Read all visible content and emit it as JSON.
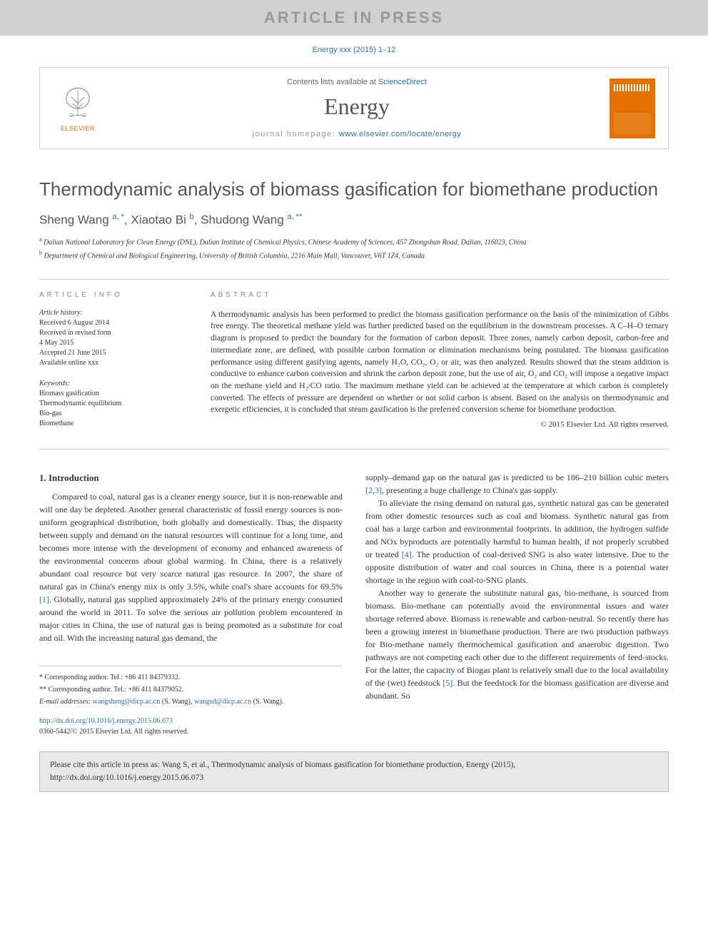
{
  "banner": "ARTICLE IN PRESS",
  "citation_top": "Energy xxx (2015) 1–12",
  "header": {
    "contents_prefix": "Contents lists available at ",
    "contents_link": "ScienceDirect",
    "journal": "Energy",
    "homepage_prefix": "journal homepage: ",
    "homepage_link": "www.elsevier.com/locate/energy",
    "publisher": "ELSEVIER"
  },
  "title": "Thermodynamic analysis of biomass gasification for biomethane production",
  "authors_html": "Sheng Wang <sup>a, *</sup>, Xiaotao Bi <sup>b</sup>, Shudong Wang <sup>a, **</sup>",
  "affiliations": [
    {
      "sup": "a",
      "text": "Dalian National Laboratory for Clean Energy (DNL), Dalian Institute of Chemical Physics, Chinese Academy of Sciences, 457 Zhongshan Road, Dalian, 116023, China"
    },
    {
      "sup": "b",
      "text": "Department of Chemical and Biological Engineering, University of British Columbia, 2216 Main Mall, Vancouver, V6T 1Z4, Canada"
    }
  ],
  "article_info_label": "ARTICLE INFO",
  "abstract_label": "ABSTRACT",
  "history_label": "Article history:",
  "history": [
    "Received 6 August 2014",
    "Received in revised form",
    "4 May 2015",
    "Accepted 21 June 2015",
    "Available online xxx"
  ],
  "keywords_label": "Keywords:",
  "keywords": [
    "Biomass gasification",
    "Thermodynamic equilibrium",
    "Bio-gas",
    "Biomethane"
  ],
  "abstract": "A thermodynamic analysis has been performed to predict the biomass gasification performance on the basis of the minimization of Gibbs free energy. The theoretical methane yield was further predicted based on the equilibrium in the downstream processes. A C–H–O ternary diagram is proposed to predict the boundary for the formation of carbon deposit. Three zones, namely carbon deposit, carbon-free and intermediate zone, are defined, with possible carbon formation or elimination mechanisms being postulated. The biomass gasification performance using different gasifying agents, namely H₂O, CO₂, O₂ or air, was then analyzed. Results showed that the steam addition is conductive to enhance carbon conversion and shrink the carbon deposit zone, but the use of air, O₂ and CO₂ will impose a negative impact on the methane yield and H₂/CO ratio. The maximum methane yield can be achieved at the temperature at which carbon is completely converted. The effects of pressure are dependent on whether or not solid carbon is absent. Based on the analysis on thermodynamic and exergetic efficiencies, it is concluded that steam gasification is the preferred conversion scheme for biomethane production.",
  "copyright": "© 2015 Elsevier Ltd. All rights reserved.",
  "section1_heading": "1. Introduction",
  "col1_p1": "Compared to coal, natural gas is a cleaner energy source, but it is non-renewable and will one day be depleted. Another general characteristic of fossil energy sources is non-uniform geographical distribution, both globally and domestically. Thus, the disparity between supply and demand on the natural resources will continue for a long time, and becomes more intense with the development of economy and enhanced awareness of the environmental concerns about global warming. In China, there is a relatively abundant coal resource but very scarce natural gas resource. In 2007, the share of natural gas in China's energy mix is only 3.5%, while coal's share accounts for 69.5% [1]. Globally, natural gas supplied approximately 24% of the primary energy consumed around the world in 2011. To solve the serious air pollution problem encountered in major cities in China, the use of natural gas is being promoted as a substitute for coal and oil. With the increasing natural gas demand, the",
  "col2_p1": "supply–demand gap on the natural gas is predicted to be 186–210 billion cubic meters [2,3], presenting a huge challenge to China's gas supply.",
  "col2_p2": "To alleviate the rising demand on natural gas, synthetic natural gas can be generated from other domestic resources such as coal and biomass. Synthetic natural gas from coal has a large carbon and environmental footprints. In addition, the hydrogen sulfide and NOx byproducts are potentially harmful to human health, if not properly scrubbed or treated [4]. The production of coal-derived SNG is also water intensive. Due to the opposite distribution of water and coal sources in China, there is a potential water shortage in the region with coal-to-SNG plants.",
  "col2_p3": "Another way to generate the substitute natural gas, bio-methane, is sourced from biomass. Bio-methane can potentially avoid the environmental issues and water shortage referred above. Biomass is renewable and carbon-neutral. So recently there has been a growing interest in biomethane production. There are two production pathways for Bio-methane namely thermochemical gasification and anaerobic digestion. Two pathways are not competing each other due to the different requirements of feed-stocks. For the latter, the capacity of Biogas plant is relatively small due to the local availability of the (wet) feedstock [5]. But the feedstock for the biomass gasification are diverse and abundant. So",
  "footnotes": {
    "f1": "* Corresponding author. Tel.: +86 411 84379332.",
    "f2": "** Corresponding author. Tel.: +86 411 84379052.",
    "emails_label": "E-mail addresses:",
    "email1": "wangsheng@dicp.ac.cn",
    "email1_who": "(S. Wang),",
    "email2": "wangsd@dicp.ac.cn",
    "email2_who": "(S. Wang)."
  },
  "doi": "http://dx.doi.org/10.1016/j.energy.2015.06.073",
  "issn_line": "0360-5442/© 2015 Elsevier Ltd. All rights reserved.",
  "cite_box": "Please cite this article in press as: Wang S, et al., Thermodynamic analysis of biomass gasification for biomethane production, Energy (2015), http://dx.doi.org/10.1016/j.energy.2015.06.073",
  "colors": {
    "link": "#2a6ebb",
    "banner_bg": "#d0d0d0",
    "banner_text": "#999999",
    "orange": "#e57200",
    "text": "#333333"
  }
}
